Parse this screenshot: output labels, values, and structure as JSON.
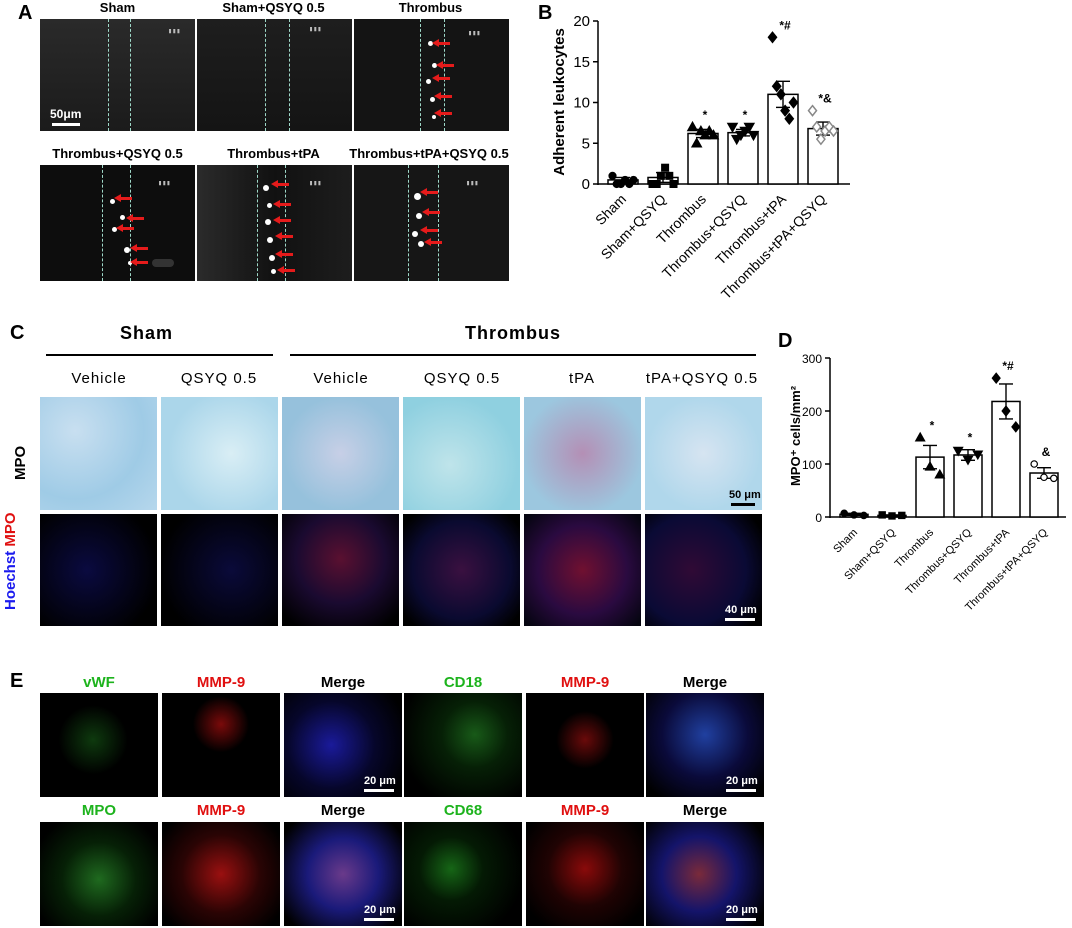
{
  "panelA": {
    "letter": "A",
    "titles": [
      "Sham",
      "Sham+QSYQ 0.5",
      "Thrombus",
      "Thrombus+QSYQ 0.5",
      "Thrombus+tPA",
      "Thrombus+tPA+QSYQ 0.5"
    ],
    "scalebar": "50μm"
  },
  "panelB": {
    "letter": "B",
    "ylabel": "Adherent leukocytes"
  },
  "panelC": {
    "letter": "C",
    "group_sham": "Sham",
    "group_thrombus": "Thrombus",
    "columns": [
      "Vehicle",
      "QSYQ 0.5",
      "Vehicle",
      "QSYQ 0.5",
      "tPA",
      "tPA+QSYQ 0.5"
    ],
    "row1_label": "MPO",
    "row2_label_a": "Hoechst",
    "row2_label_b": "MPO",
    "scalebar_top": "50 μm",
    "scalebar_bottom": "40 μm"
  },
  "panelD": {
    "letter": "D",
    "ylabel": "MPO⁺ cells/mm²"
  },
  "panelE": {
    "letter": "E",
    "row1": [
      {
        "text": "vWF",
        "color": "#1db31d"
      },
      {
        "text": "MMP-9",
        "color": "#e01010"
      },
      {
        "text": "Merge",
        "color": "#000000"
      },
      {
        "text": "CD18",
        "color": "#1db31d"
      },
      {
        "text": "MMP-9",
        "color": "#e01010"
      },
      {
        "text": "Merge",
        "color": "#000000"
      }
    ],
    "row2": [
      {
        "text": "MPO",
        "color": "#1db31d"
      },
      {
        "text": "MMP-9",
        "color": "#e01010"
      },
      {
        "text": "Merge",
        "color": "#000000"
      },
      {
        "text": "CD68",
        "color": "#1db31d"
      },
      {
        "text": "MMP-9",
        "color": "#e01010"
      },
      {
        "text": "Merge",
        "color": "#000000"
      }
    ],
    "scalebar": "20 μm"
  },
  "chart_data": [
    {
      "type": "bar",
      "panel": "B",
      "categories": [
        "Sham",
        "Sham+QSYQ",
        "Thrombus",
        "Thrombus+QSYQ",
        "Thrombus+tPA",
        "Thrombus+tPA+QSYQ"
      ],
      "values": [
        0.5,
        0.8,
        6.2,
        6.3,
        11.0,
        6.8
      ],
      "errors": [
        0.3,
        0.6,
        0.5,
        0.4,
        1.6,
        0.8
      ],
      "points": [
        [
          1.0,
          0.0,
          0.0,
          0.5,
          0.0,
          0.5
        ],
        [
          0.0,
          0.0,
          1.0,
          2.0,
          1.0,
          0.0
        ],
        [
          7.0,
          5.0,
          6.5,
          6.0,
          6.5,
          6.0
        ],
        [
          7.0,
          5.5,
          6.0,
          6.5,
          7.0,
          6.0
        ],
        [
          18.0,
          12.0,
          11.0,
          9.0,
          8.0,
          10.0
        ],
        [
          9.0,
          7.0,
          5.5,
          6.5,
          7.0,
          6.5
        ]
      ],
      "markers": [
        "circle",
        "square",
        "triangle-up",
        "triangle-down",
        "diamond",
        "diamond-open"
      ],
      "annotations": [
        "",
        "",
        "*",
        "*",
        "*#",
        "*&"
      ],
      "ylabel": "Adherent leukocytes",
      "ylim": [
        0,
        20
      ],
      "yticks": [
        0,
        5,
        10,
        15,
        20
      ]
    },
    {
      "type": "bar",
      "panel": "D",
      "categories": [
        "Sham",
        "Sham+QSYQ",
        "Thrombus",
        "Thrombus+QSYQ",
        "Thrombus+tPA",
        "Thrombus+tPA+QSYQ"
      ],
      "values": [
        5,
        3,
        113,
        117,
        218,
        83
      ],
      "errors": [
        2,
        1,
        22,
        10,
        33,
        10
      ],
      "points": [
        [
          7,
          4,
          3
        ],
        [
          4,
          2,
          3
        ],
        [
          150,
          95,
          80
        ],
        [
          125,
          108,
          118
        ],
        [
          262,
          200,
          170
        ],
        [
          100,
          75,
          73
        ]
      ],
      "markers": [
        "circle",
        "square",
        "triangle-up",
        "triangle-down",
        "diamond",
        "circle-open"
      ],
      "annotations": [
        "",
        "",
        "*",
        "*",
        "*#",
        "&"
      ],
      "ylabel": "MPO⁺ cells/mm²",
      "ylim": [
        0,
        300
      ],
      "yticks": [
        0,
        100,
        200,
        300
      ]
    }
  ]
}
